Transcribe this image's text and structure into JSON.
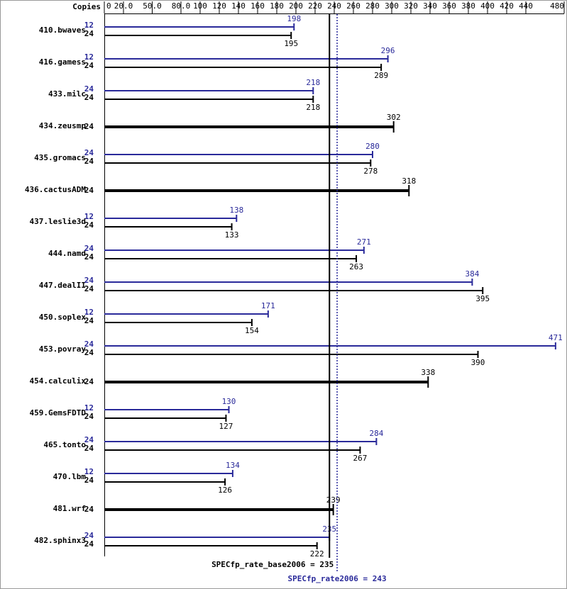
{
  "chart_data": {
    "type": "bar",
    "orientation": "horizontal",
    "copies_label": "Copies",
    "categories": [
      "410.bwaves",
      "416.gamess",
      "433.milc",
      "434.zeusmp",
      "435.gromacs",
      "436.cactusADM",
      "437.leslie3d",
      "444.namd",
      "447.dealII",
      "450.soplex",
      "453.povray",
      "454.calculix",
      "459.GemsFDTD",
      "465.tonto",
      "470.lbm",
      "481.wrf",
      "482.sphinx3"
    ],
    "series": [
      {
        "color": "#2a2a9a",
        "copies": [
          12,
          12,
          24,
          null,
          24,
          null,
          12,
          24,
          24,
          12,
          24,
          null,
          12,
          24,
          12,
          null,
          24
        ],
        "values": [
          198,
          296,
          218,
          null,
          280,
          null,
          138,
          271,
          384,
          171,
          471,
          null,
          130,
          284,
          134,
          null,
          235
        ]
      },
      {
        "color": "#000000",
        "copies": [
          24,
          24,
          24,
          24,
          24,
          24,
          24,
          24,
          24,
          24,
          24,
          24,
          24,
          24,
          24,
          24,
          24
        ],
        "values": [
          195,
          289,
          218,
          302,
          278,
          318,
          133,
          263,
          395,
          154,
          390,
          338,
          127,
          267,
          126,
          239,
          222
        ]
      }
    ],
    "xlim": [
      0,
      480
    ],
    "xticks": [
      0,
      {
        "value": 20,
        "label": "20.0"
      },
      {
        "value": 50,
        "label": "50.0"
      },
      {
        "value": 80,
        "label": "80.0"
      },
      100,
      120,
      140,
      160,
      180,
      200,
      220,
      240,
      260,
      280,
      300,
      320,
      340,
      360,
      380,
      400,
      420,
      440,
      480
    ],
    "reference_lines": [
      {
        "label": "SPECfp_rate_base2006 = 235",
        "value": 235,
        "color": "#000000",
        "style": "solid"
      },
      {
        "label": "SPECfp_rate2006 = 243",
        "value": 243,
        "color": "#2a2a9a",
        "style": "dotted"
      }
    ]
  }
}
